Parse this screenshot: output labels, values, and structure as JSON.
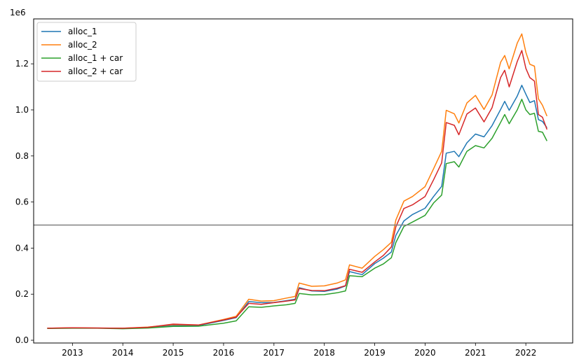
{
  "chart_data": {
    "type": "line",
    "title": "",
    "xlabel": "",
    "ylabel": "",
    "y_offset_label": "1e6",
    "xlim": [
      2012.23,
      2022.93
    ],
    "ylim": [
      -0.012,
      1.395
    ],
    "grid": false,
    "legend_position": "top-left",
    "x_ticks": [
      {
        "value": 2013,
        "label": "2013"
      },
      {
        "value": 2014,
        "label": "2014"
      },
      {
        "value": 2015,
        "label": "2015"
      },
      {
        "value": 2016,
        "label": "2016"
      },
      {
        "value": 2017,
        "label": "2017"
      },
      {
        "value": 2018,
        "label": "2018"
      },
      {
        "value": 2019,
        "label": "2019"
      },
      {
        "value": 2020,
        "label": "2020"
      },
      {
        "value": 2021,
        "label": "2021"
      },
      {
        "value": 2022,
        "label": "2022"
      }
    ],
    "y_ticks": [
      {
        "value": 0.0,
        "label": "0.0"
      },
      {
        "value": 0.2,
        "label": "0.2"
      },
      {
        "value": 0.4,
        "label": "0.4"
      },
      {
        "value": 0.6,
        "label": "0.6"
      },
      {
        "value": 0.8,
        "label": "0.8"
      },
      {
        "value": 1.0,
        "label": "1.0"
      },
      {
        "value": 1.2,
        "label": "1.2"
      }
    ],
    "reference_line": {
      "y": 0.5,
      "color": "#808080"
    },
    "series": [
      {
        "name": "alloc_1",
        "color": "#1f77b4",
        "points": [
          [
            2012.5,
            0.052
          ],
          [
            2013.0,
            0.053
          ],
          [
            2013.5,
            0.053
          ],
          [
            2014.0,
            0.051
          ],
          [
            2014.5,
            0.056
          ],
          [
            2015.0,
            0.063
          ],
          [
            2015.5,
            0.064
          ],
          [
            2016.0,
            0.086
          ],
          [
            2016.25,
            0.098
          ],
          [
            2016.5,
            0.168
          ],
          [
            2016.75,
            0.163
          ],
          [
            2017.0,
            0.164
          ],
          [
            2017.25,
            0.172
          ],
          [
            2017.42,
            0.178
          ],
          [
            2017.5,
            0.228
          ],
          [
            2017.75,
            0.214
          ],
          [
            2018.0,
            0.212
          ],
          [
            2018.25,
            0.222
          ],
          [
            2018.42,
            0.236
          ],
          [
            2018.5,
            0.298
          ],
          [
            2018.75,
            0.285
          ],
          [
            2019.0,
            0.333
          ],
          [
            2019.17,
            0.356
          ],
          [
            2019.33,
            0.383
          ],
          [
            2019.42,
            0.455
          ],
          [
            2019.58,
            0.518
          ],
          [
            2019.75,
            0.546
          ],
          [
            2020.0,
            0.573
          ],
          [
            2020.17,
            0.624
          ],
          [
            2020.33,
            0.668
          ],
          [
            2020.42,
            0.812
          ],
          [
            2020.58,
            0.82
          ],
          [
            2020.67,
            0.797
          ],
          [
            2020.83,
            0.857
          ],
          [
            2021.0,
            0.895
          ],
          [
            2021.17,
            0.883
          ],
          [
            2021.33,
            0.932
          ],
          [
            2021.5,
            1.002
          ],
          [
            2021.58,
            1.037
          ],
          [
            2021.67,
            0.998
          ],
          [
            2021.83,
            1.06
          ],
          [
            2021.92,
            1.107
          ],
          [
            2022.0,
            1.068
          ],
          [
            2022.08,
            1.032
          ],
          [
            2022.17,
            1.04
          ],
          [
            2022.25,
            0.958
          ],
          [
            2022.33,
            0.95
          ],
          [
            2022.42,
            0.922
          ]
        ]
      },
      {
        "name": "alloc_2",
        "color": "#ff7f0e",
        "points": [
          [
            2012.5,
            0.052
          ],
          [
            2013.0,
            0.054
          ],
          [
            2013.5,
            0.053
          ],
          [
            2014.0,
            0.052
          ],
          [
            2014.5,
            0.057
          ],
          [
            2015.0,
            0.068
          ],
          [
            2015.5,
            0.066
          ],
          [
            2016.0,
            0.09
          ],
          [
            2016.25,
            0.104
          ],
          [
            2016.5,
            0.178
          ],
          [
            2016.75,
            0.17
          ],
          [
            2017.0,
            0.172
          ],
          [
            2017.25,
            0.183
          ],
          [
            2017.42,
            0.19
          ],
          [
            2017.5,
            0.248
          ],
          [
            2017.75,
            0.234
          ],
          [
            2018.0,
            0.236
          ],
          [
            2018.25,
            0.248
          ],
          [
            2018.42,
            0.262
          ],
          [
            2018.5,
            0.327
          ],
          [
            2018.75,
            0.313
          ],
          [
            2019.0,
            0.364
          ],
          [
            2019.17,
            0.393
          ],
          [
            2019.33,
            0.425
          ],
          [
            2019.42,
            0.522
          ],
          [
            2019.58,
            0.604
          ],
          [
            2019.75,
            0.624
          ],
          [
            2020.0,
            0.667
          ],
          [
            2020.17,
            0.745
          ],
          [
            2020.33,
            0.82
          ],
          [
            2020.42,
            0.998
          ],
          [
            2020.58,
            0.983
          ],
          [
            2020.67,
            0.943
          ],
          [
            2020.83,
            1.03
          ],
          [
            2021.0,
            1.063
          ],
          [
            2021.17,
            1.002
          ],
          [
            2021.33,
            1.065
          ],
          [
            2021.5,
            1.207
          ],
          [
            2021.58,
            1.236
          ],
          [
            2021.67,
            1.178
          ],
          [
            2021.83,
            1.29
          ],
          [
            2021.92,
            1.33
          ],
          [
            2022.0,
            1.25
          ],
          [
            2022.08,
            1.198
          ],
          [
            2022.17,
            1.19
          ],
          [
            2022.25,
            1.048
          ],
          [
            2022.33,
            1.02
          ],
          [
            2022.42,
            0.973
          ]
        ]
      },
      {
        "name": "alloc_1 + car",
        "color": "#2ca02c",
        "points": [
          [
            2012.5,
            0.051
          ],
          [
            2013.0,
            0.052
          ],
          [
            2013.5,
            0.052
          ],
          [
            2014.0,
            0.05
          ],
          [
            2014.5,
            0.053
          ],
          [
            2015.0,
            0.06
          ],
          [
            2015.5,
            0.061
          ],
          [
            2016.0,
            0.074
          ],
          [
            2016.25,
            0.084
          ],
          [
            2016.5,
            0.145
          ],
          [
            2016.75,
            0.143
          ],
          [
            2017.0,
            0.149
          ],
          [
            2017.25,
            0.154
          ],
          [
            2017.42,
            0.16
          ],
          [
            2017.5,
            0.203
          ],
          [
            2017.75,
            0.197
          ],
          [
            2018.0,
            0.198
          ],
          [
            2018.25,
            0.206
          ],
          [
            2018.42,
            0.214
          ],
          [
            2018.5,
            0.28
          ],
          [
            2018.75,
            0.276
          ],
          [
            2019.0,
            0.313
          ],
          [
            2019.17,
            0.331
          ],
          [
            2019.33,
            0.358
          ],
          [
            2019.42,
            0.424
          ],
          [
            2019.58,
            0.494
          ],
          [
            2019.75,
            0.513
          ],
          [
            2020.0,
            0.542
          ],
          [
            2020.17,
            0.596
          ],
          [
            2020.33,
            0.63
          ],
          [
            2020.42,
            0.767
          ],
          [
            2020.58,
            0.775
          ],
          [
            2020.67,
            0.752
          ],
          [
            2020.83,
            0.82
          ],
          [
            2021.0,
            0.845
          ],
          [
            2021.17,
            0.835
          ],
          [
            2021.33,
            0.877
          ],
          [
            2021.5,
            0.946
          ],
          [
            2021.58,
            0.98
          ],
          [
            2021.67,
            0.94
          ],
          [
            2021.83,
            1.0
          ],
          [
            2021.92,
            1.046
          ],
          [
            2022.0,
            1.0
          ],
          [
            2022.08,
            0.98
          ],
          [
            2022.17,
            0.985
          ],
          [
            2022.25,
            0.907
          ],
          [
            2022.33,
            0.903
          ],
          [
            2022.42,
            0.865
          ]
        ]
      },
      {
        "name": "alloc_2 + car",
        "color": "#d62728",
        "points": [
          [
            2012.5,
            0.052
          ],
          [
            2013.0,
            0.054
          ],
          [
            2013.5,
            0.053
          ],
          [
            2014.0,
            0.052
          ],
          [
            2014.5,
            0.056
          ],
          [
            2015.0,
            0.07
          ],
          [
            2015.5,
            0.066
          ],
          [
            2016.0,
            0.088
          ],
          [
            2016.25,
            0.1
          ],
          [
            2016.5,
            0.16
          ],
          [
            2016.75,
            0.156
          ],
          [
            2017.0,
            0.163
          ],
          [
            2017.25,
            0.17
          ],
          [
            2017.42,
            0.175
          ],
          [
            2017.5,
            0.224
          ],
          [
            2017.75,
            0.216
          ],
          [
            2018.0,
            0.215
          ],
          [
            2018.25,
            0.226
          ],
          [
            2018.42,
            0.237
          ],
          [
            2018.5,
            0.308
          ],
          [
            2018.75,
            0.295
          ],
          [
            2019.0,
            0.34
          ],
          [
            2019.17,
            0.368
          ],
          [
            2019.33,
            0.405
          ],
          [
            2019.42,
            0.492
          ],
          [
            2019.58,
            0.572
          ],
          [
            2019.75,
            0.588
          ],
          [
            2020.0,
            0.624
          ],
          [
            2020.17,
            0.697
          ],
          [
            2020.33,
            0.77
          ],
          [
            2020.42,
            0.945
          ],
          [
            2020.58,
            0.933
          ],
          [
            2020.67,
            0.892
          ],
          [
            2020.83,
            0.982
          ],
          [
            2021.0,
            1.008
          ],
          [
            2021.17,
            0.948
          ],
          [
            2021.33,
            1.01
          ],
          [
            2021.5,
            1.141
          ],
          [
            2021.58,
            1.172
          ],
          [
            2021.67,
            1.1
          ],
          [
            2021.83,
            1.21
          ],
          [
            2021.92,
            1.258
          ],
          [
            2022.0,
            1.18
          ],
          [
            2022.08,
            1.14
          ],
          [
            2022.17,
            1.125
          ],
          [
            2022.25,
            0.98
          ],
          [
            2022.33,
            0.968
          ],
          [
            2022.42,
            0.915
          ]
        ]
      }
    ]
  }
}
